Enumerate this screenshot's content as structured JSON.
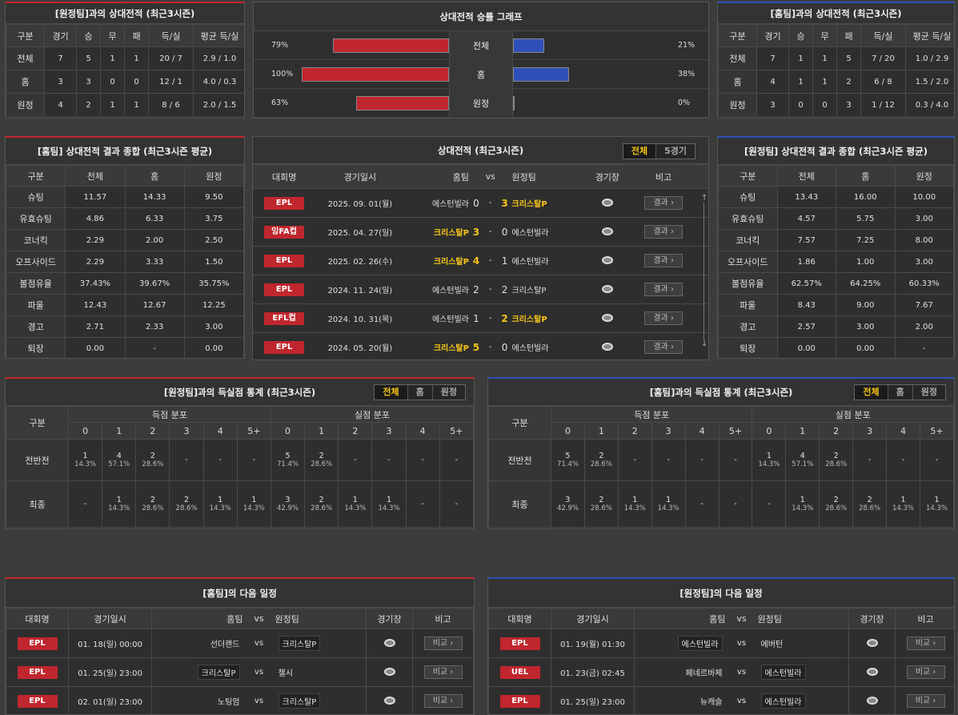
{
  "h2h_away": {
    "title": "[원정팀]과의 상대전적 (최근3시즌)",
    "headers": [
      "구분",
      "경기",
      "승",
      "무",
      "패",
      "득/실",
      "평균 득/실"
    ],
    "rows": [
      [
        "전체",
        "7",
        "5",
        "1",
        "1",
        "20 / 7",
        "2.9 / 1.0"
      ],
      [
        "홈",
        "3",
        "3",
        "0",
        "0",
        "12 / 1",
        "4.0 / 0.3"
      ],
      [
        "원정",
        "4",
        "2",
        "1",
        "1",
        "8 / 6",
        "2.0 / 1.5"
      ]
    ]
  },
  "h2h_home": {
    "title": "[홈팀]과의 상대전적 (최근3시즌)",
    "headers": [
      "구분",
      "경기",
      "승",
      "무",
      "패",
      "득/실",
      "평균 득/실"
    ],
    "rows": [
      [
        "전체",
        "7",
        "1",
        "1",
        "5",
        "7 / 20",
        "1.0 / 2.9"
      ],
      [
        "홈",
        "4",
        "1",
        "1",
        "2",
        "6 / 8",
        "1.5 / 2.0"
      ],
      [
        "원정",
        "3",
        "0",
        "0",
        "3",
        "1 / 12",
        "0.3 / 4.0"
      ]
    ]
  },
  "graph": {
    "title": "상대전적 승률 그래프",
    "rows": [
      {
        "label": "전체",
        "left_pct": "79%",
        "right_pct": "21%",
        "left": 79,
        "right": 21
      },
      {
        "label": "홈",
        "left_pct": "100%",
        "right_pct": "38%",
        "left": 100,
        "right": 38
      },
      {
        "label": "원정",
        "left_pct": "63%",
        "right_pct": "0%",
        "left": 63,
        "right": 0
      }
    ]
  },
  "summary_home": {
    "title": "[홈팀] 상대전적 결과 종합 (최근3시즌 평균)",
    "headers": [
      "구분",
      "전체",
      "홈",
      "원정"
    ],
    "rows": [
      [
        "슈팅",
        "11.57",
        "14.33",
        "9.50"
      ],
      [
        "유효슈팅",
        "4.86",
        "6.33",
        "3.75"
      ],
      [
        "코너킥",
        "2.29",
        "2.00",
        "2.50"
      ],
      [
        "오프사이드",
        "2.29",
        "3.33",
        "1.50"
      ],
      [
        "볼점유율",
        "37.43%",
        "39.67%",
        "35.75%"
      ],
      [
        "파울",
        "12.43",
        "12.67",
        "12.25"
      ],
      [
        "경고",
        "2.71",
        "2.33",
        "3.00"
      ],
      [
        "퇴장",
        "0.00",
        "-",
        "0.00"
      ]
    ]
  },
  "summary_away": {
    "title": "[원정팀] 상대전적 결과 종합 (최근3시즌 평균)",
    "headers": [
      "구분",
      "전체",
      "홈",
      "원정"
    ],
    "rows": [
      [
        "슈팅",
        "13.43",
        "16.00",
        "10.00"
      ],
      [
        "유효슈팅",
        "4.57",
        "5.75",
        "3.00"
      ],
      [
        "코너킥",
        "7.57",
        "7.25",
        "8.00"
      ],
      [
        "오프사이드",
        "1.86",
        "1.00",
        "3.00"
      ],
      [
        "볼점유율",
        "62.57%",
        "64.25%",
        "60.33%"
      ],
      [
        "파울",
        "8.43",
        "9.00",
        "7.67"
      ],
      [
        "경고",
        "2.57",
        "3.00",
        "2.00"
      ],
      [
        "퇴장",
        "0.00",
        "0.00",
        "-"
      ]
    ]
  },
  "h2h_matches": {
    "title": "상대전적 (최근3시즌)",
    "seg": [
      "전체",
      "5경기"
    ],
    "headers": {
      "league": "대회명",
      "date": "경기일시",
      "home": "홈팀",
      "vs": "vs",
      "away": "원정팀",
      "stadium": "경기장",
      "note": "비고"
    },
    "result_label": "결과",
    "rows": [
      {
        "league": "EPL",
        "date": "2025. 09. 01(월)",
        "home": "에스턴빌라",
        "hs": "0",
        "dash": "-",
        "as": "3",
        "away": "크리스탈P",
        "win": "away"
      },
      {
        "league": "잉FA컵",
        "date": "2025. 04. 27(일)",
        "home": "크리스탈P",
        "hs": "3",
        "dash": "-",
        "as": "0",
        "away": "에스턴빌라",
        "win": "home"
      },
      {
        "league": "EPL",
        "date": "2025. 02. 26(수)",
        "home": "크리스탈P",
        "hs": "4",
        "dash": "-",
        "as": "1",
        "away": "에스턴빌라",
        "win": "home"
      },
      {
        "league": "EPL",
        "date": "2024. 11. 24(일)",
        "home": "에스턴빌라",
        "hs": "2",
        "dash": "-",
        "as": "2",
        "away": "크리스탈P",
        "win": "none"
      },
      {
        "league": "EFL컵",
        "date": "2024. 10. 31(목)",
        "home": "에스턴빌라",
        "hs": "1",
        "dash": "-",
        "as": "2",
        "away": "크리스탈P",
        "win": "away"
      },
      {
        "league": "EPL",
        "date": "2024. 05. 20(월)",
        "home": "크리스탈P",
        "hs": "5",
        "dash": "-",
        "as": "0",
        "away": "에스턴빌라",
        "win": "home"
      }
    ]
  },
  "goals_away": {
    "title": "[원정팀]과의 득실점 통계 (최근3시즌)",
    "seg": [
      "전체",
      "홈",
      "원정"
    ],
    "col_label": "구분",
    "scored_label": "득점 분포",
    "conceded_label": "실점 분포",
    "cols": [
      "0",
      "1",
      "2",
      "3",
      "4",
      "5+"
    ],
    "rows": [
      {
        "label": "전반전",
        "scored": [
          [
            "1",
            "14.3%"
          ],
          [
            "4",
            "57.1%"
          ],
          [
            "2",
            "28.6%"
          ],
          [
            "-",
            ""
          ],
          [
            "-",
            ""
          ],
          [
            "-",
            ""
          ]
        ],
        "conceded": [
          [
            "5",
            "71.4%"
          ],
          [
            "2",
            "28.6%"
          ],
          [
            "-",
            ""
          ],
          [
            "-",
            ""
          ],
          [
            "-",
            ""
          ],
          [
            "-",
            ""
          ]
        ]
      },
      {
        "label": "최종",
        "scored": [
          [
            "-",
            ""
          ],
          [
            "1",
            "14.3%"
          ],
          [
            "2",
            "28.6%"
          ],
          [
            "2",
            "28.6%"
          ],
          [
            "1",
            "14.3%"
          ],
          [
            "1",
            "14.3%"
          ]
        ],
        "conceded": [
          [
            "3",
            "42.9%"
          ],
          [
            "2",
            "28.6%"
          ],
          [
            "1",
            "14.3%"
          ],
          [
            "1",
            "14.3%"
          ],
          [
            "-",
            ""
          ],
          [
            "-",
            ""
          ]
        ]
      }
    ]
  },
  "goals_home": {
    "title": "[홈팀]과의 득실점 통계 (최근3시즌)",
    "seg": [
      "전체",
      "홈",
      "원정"
    ],
    "col_label": "구분",
    "scored_label": "득점 분포",
    "conceded_label": "실점 분포",
    "cols": [
      "0",
      "1",
      "2",
      "3",
      "4",
      "5+"
    ],
    "rows": [
      {
        "label": "전반전",
        "scored": [
          [
            "5",
            "71.4%"
          ],
          [
            "2",
            "28.6%"
          ],
          [
            "-",
            ""
          ],
          [
            "-",
            ""
          ],
          [
            "-",
            ""
          ],
          [
            "-",
            ""
          ]
        ],
        "conceded": [
          [
            "1",
            "14.3%"
          ],
          [
            "4",
            "57.1%"
          ],
          [
            "2",
            "28.6%"
          ],
          [
            "-",
            ""
          ],
          [
            "-",
            ""
          ],
          [
            "-",
            ""
          ]
        ]
      },
      {
        "label": "최종",
        "scored": [
          [
            "3",
            "42.9%"
          ],
          [
            "2",
            "28.6%"
          ],
          [
            "1",
            "14.3%"
          ],
          [
            "1",
            "14.3%"
          ],
          [
            "-",
            ""
          ],
          [
            "-",
            ""
          ]
        ],
        "conceded": [
          [
            "-",
            ""
          ],
          [
            "1",
            "14.3%"
          ],
          [
            "2",
            "28.6%"
          ],
          [
            "2",
            "28.6%"
          ],
          [
            "1",
            "14.3%"
          ],
          [
            "1",
            "14.3%"
          ]
        ]
      }
    ]
  },
  "next_home": {
    "title": "[홈팀]의 다음 일정",
    "headers": {
      "league": "대회명",
      "date": "경기일시",
      "home": "홈팀",
      "vs": "vs",
      "away": "원정팀",
      "stadium": "경기장",
      "note": "비고"
    },
    "compare_label": "비교",
    "rows": [
      {
        "league": "EPL",
        "date": "01. 18(일) 00:00",
        "home": "선더랜드",
        "away": "크리스탈P",
        "mark": "away"
      },
      {
        "league": "EPL",
        "date": "01. 25(일) 23:00",
        "home": "크리스탈P",
        "away": "첼시",
        "mark": "home"
      },
      {
        "league": "EPL",
        "date": "02. 01(일) 23:00",
        "home": "노팅엄",
        "away": "크리스탈P",
        "mark": "away"
      }
    ]
  },
  "next_away": {
    "title": "[원정팀]의 다음 일정",
    "headers": {
      "league": "대회명",
      "date": "경기일시",
      "home": "홈팀",
      "vs": "vs",
      "away": "원정팀",
      "stadium": "경기장",
      "note": "비고"
    },
    "compare_label": "비교",
    "rows": [
      {
        "league": "EPL",
        "date": "01. 19(월) 01:30",
        "home": "에스턴빌라",
        "away": "에버턴",
        "mark": "home"
      },
      {
        "league": "UEL",
        "date": "01. 23(금) 02:45",
        "home": "페네르바체",
        "away": "에스턴빌라",
        "mark": "away"
      },
      {
        "league": "EPL",
        "date": "01. 25(일) 23:00",
        "home": "뉴캐슬",
        "away": "에스턴빌라",
        "mark": "away"
      }
    ]
  }
}
